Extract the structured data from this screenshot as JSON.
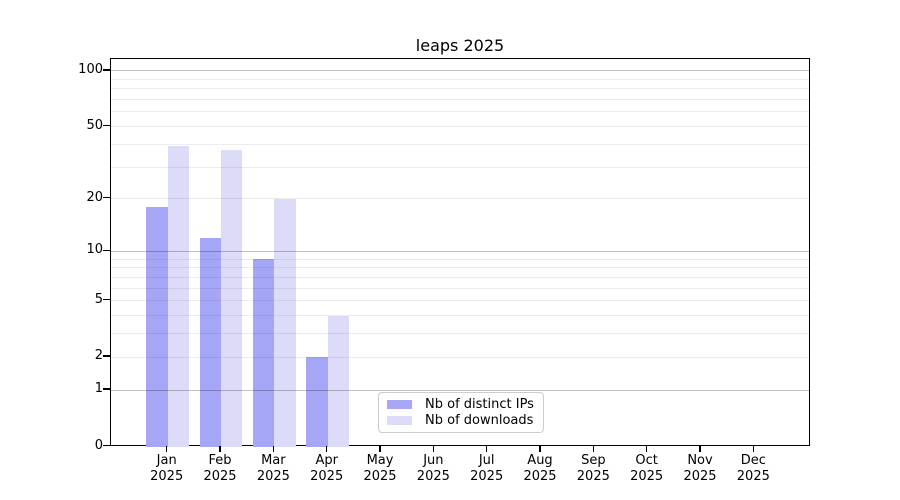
{
  "title": "leaps 2025",
  "chart_data": {
    "type": "bar",
    "title": "leaps 2025",
    "categories": [
      "Jan",
      "Feb",
      "Mar",
      "Apr",
      "May",
      "Jun",
      "Jul",
      "Aug",
      "Sep",
      "Oct",
      "Nov",
      "Dec"
    ],
    "category_year": "2025",
    "series": [
      {
        "name": "Nb of distinct IPs",
        "color": "#a6a6f7",
        "values": [
          18,
          12,
          9,
          2,
          0,
          0,
          0,
          0,
          0,
          0,
          0,
          0
        ]
      },
      {
        "name": "Nb of downloads",
        "color": "#dcdcf9",
        "values": [
          39,
          37,
          20,
          4,
          0,
          0,
          0,
          0,
          0,
          0,
          0,
          0
        ]
      }
    ],
    "yscale": "log(1+value)",
    "ylim": [
      0,
      116
    ],
    "yticks": [
      0,
      1,
      2,
      5,
      10,
      20,
      50,
      100
    ],
    "major_gridlines": [
      1,
      10,
      100
    ],
    "minor_yticks": [
      3,
      4,
      6,
      7,
      8,
      9,
      30,
      40,
      60,
      70,
      80,
      90
    ],
    "grid": "horizontal",
    "legend_position": "bottom-left-of-center",
    "xlabel": "",
    "ylabel": ""
  }
}
